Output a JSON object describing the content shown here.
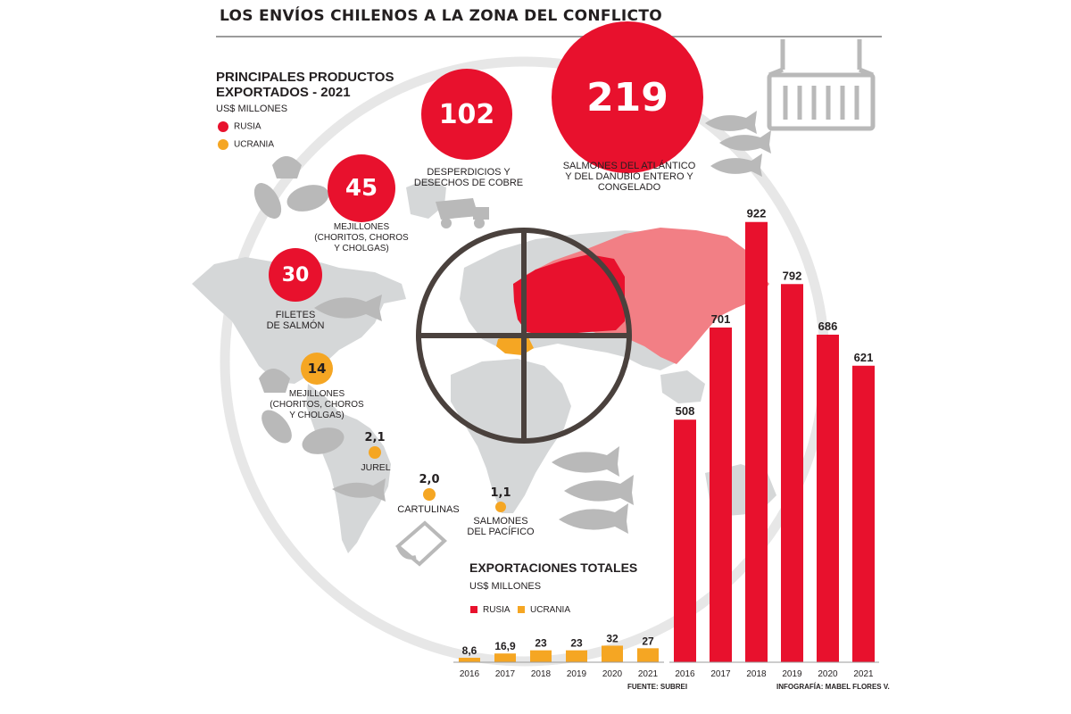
{
  "title": "LOS ENVÍOS CHILENOS A LA ZONA DEL CONFLICTO",
  "colors": {
    "rusia": "#e8112d",
    "ucrania": "#f5a623",
    "russia_map": "#f27f85",
    "map_gray": "#d5d7d8",
    "ring": "#e7e7e7",
    "crosshair": "#4a413d"
  },
  "products": {
    "heading": "PRINCIPALES PRODUCTOS\nEXPORTADOS - 2021",
    "unit": "US$ MILLONES",
    "legend": [
      {
        "label": "RUSIA",
        "color": "#e8112d"
      },
      {
        "label": "UCRANIA",
        "color": "#f5a623"
      }
    ],
    "items": [
      {
        "value": "219",
        "label": "SALMONES DEL ATLÁNTICO\nY DEL DANUBIO ENTERO Y\nCONGELADO",
        "country": "RUSIA",
        "icon": "fish-icon"
      },
      {
        "value": "102",
        "label": "DESPERDICIOS Y\nDESECHOS DE COBRE",
        "country": "RUSIA",
        "icon": "dump-truck-icon"
      },
      {
        "value": "45",
        "label": "MEJILLONES\n(CHORITOS, CHOROS\nY CHOLGAS)",
        "country": "RUSIA",
        "icon": "mussel-icon"
      },
      {
        "value": "30",
        "label": "FILETES\nDE SALMÓN",
        "country": "RUSIA",
        "icon": "fish-icon"
      },
      {
        "value": "14",
        "label": "MEJILLONES\n(CHORITOS, CHOROS\nY CHOLGAS)",
        "country": "UCRANIA",
        "icon": "mussel-icon"
      },
      {
        "value": "2,1",
        "label": "JUREL",
        "country": "UCRANIA",
        "icon": "fish-icon"
      },
      {
        "value": "2,0",
        "label": "CARTULINAS",
        "country": "UCRANIA",
        "icon": "paper-roll-icon"
      },
      {
        "value": "1,1",
        "label": "SALMONES\nDEL PACÍFICO",
        "country": "UCRANIA",
        "icon": "fish-icon"
      }
    ]
  },
  "totals": {
    "heading": "EXPORTACIONES TOTALES",
    "unit": "US$ MILLONES",
    "legend": [
      {
        "label": "RUSIA",
        "color": "#e8112d"
      },
      {
        "label": "UCRANIA",
        "color": "#f5a623"
      }
    ]
  },
  "chart_data": {
    "type": "bar",
    "title": "EXPORTACIONES TOTALES",
    "ylabel": "US$ MILLONES",
    "categories": [
      "2016",
      "2017",
      "2018",
      "2019",
      "2020",
      "2021"
    ],
    "series": [
      {
        "name": "UCRANIA",
        "values": [
          8.6,
          16.9,
          23,
          23,
          32,
          27
        ],
        "labels": [
          "8,6",
          "16,9",
          "23",
          "23",
          "32",
          "27"
        ],
        "color": "#f5a623"
      },
      {
        "name": "RUSIA",
        "values": [
          508,
          701,
          922,
          792,
          686,
          621
        ],
        "labels": [
          "508",
          "701",
          "922",
          "792",
          "686",
          "621"
        ],
        "color": "#e8112d"
      }
    ]
  },
  "source": "FUENTE: SUBREI",
  "credit": "INFOGRAFÍA: MABEL FLORES V."
}
